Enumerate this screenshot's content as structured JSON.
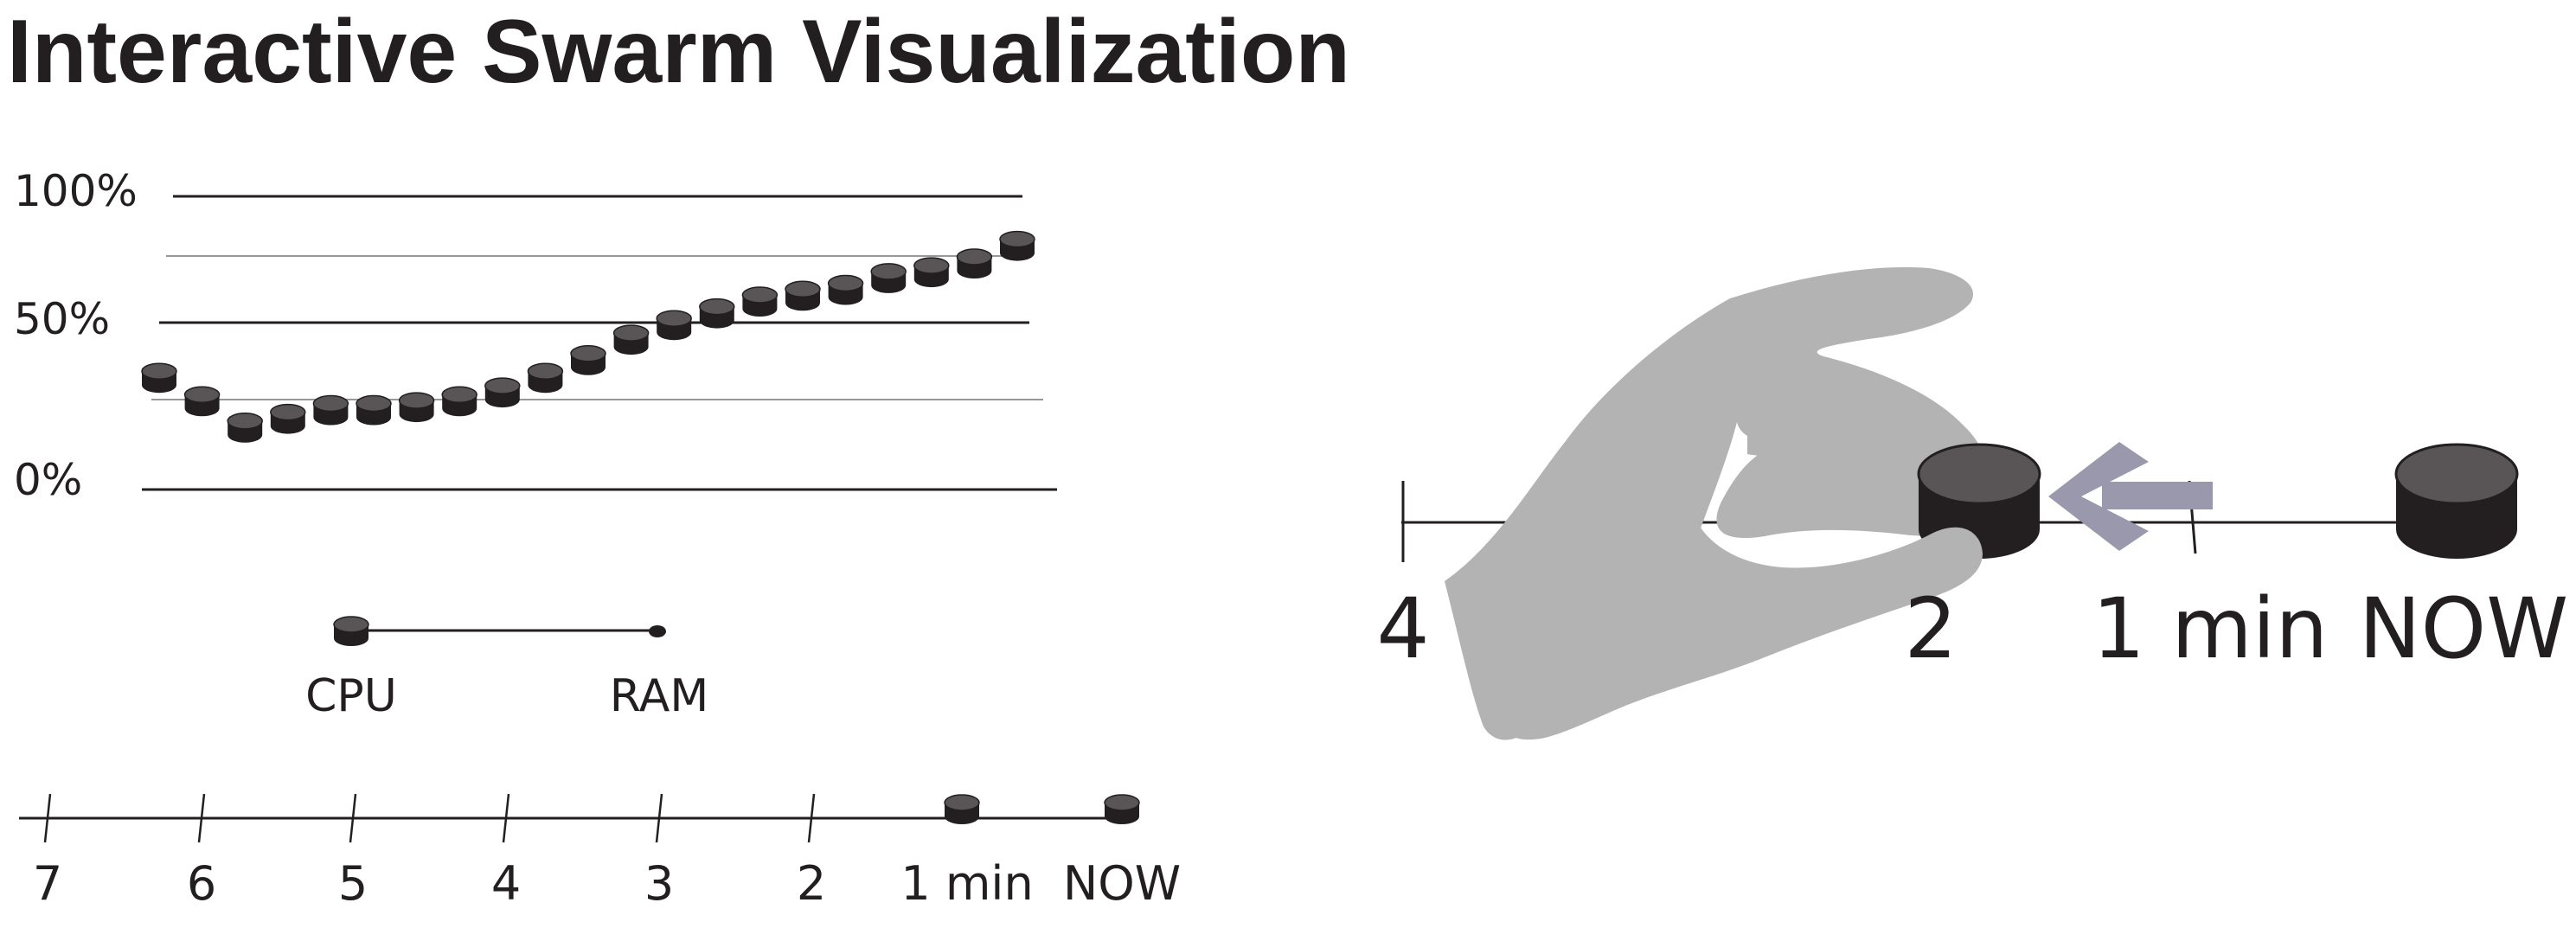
{
  "title": "Interactive Swarm Visualization",
  "colors": {
    "disc_top": "#595556",
    "disc_side": "#231f20",
    "line": "#231f20",
    "hand": "#b3b3b3",
    "arrow": "#9a98ad"
  },
  "chart_data": {
    "type": "scatter",
    "y_tick_labels": [
      "100%",
      "50%",
      "0%"
    ],
    "y_range": [
      0,
      100
    ],
    "grid": "major lines at 0%, 50%, 100%; minor lines at 25%, 75%",
    "values": [
      38,
      30,
      21,
      24,
      27,
      27,
      28,
      30,
      33,
      38,
      44,
      51,
      56,
      60,
      64,
      66,
      68,
      72,
      74,
      77,
      83
    ]
  },
  "legend": {
    "start_label": "CPU",
    "end_label": "RAM"
  },
  "timeline": {
    "tick_labels": [
      "7",
      "6",
      "5",
      "4",
      "3",
      "2",
      "1 min",
      "NOW"
    ]
  },
  "zoom_panel": {
    "tick_labels": [
      "4",
      "2",
      "1 min",
      "NOW"
    ],
    "hand_icon": "hand-grab-icon",
    "arrow_icon": "arrow-left-icon"
  }
}
